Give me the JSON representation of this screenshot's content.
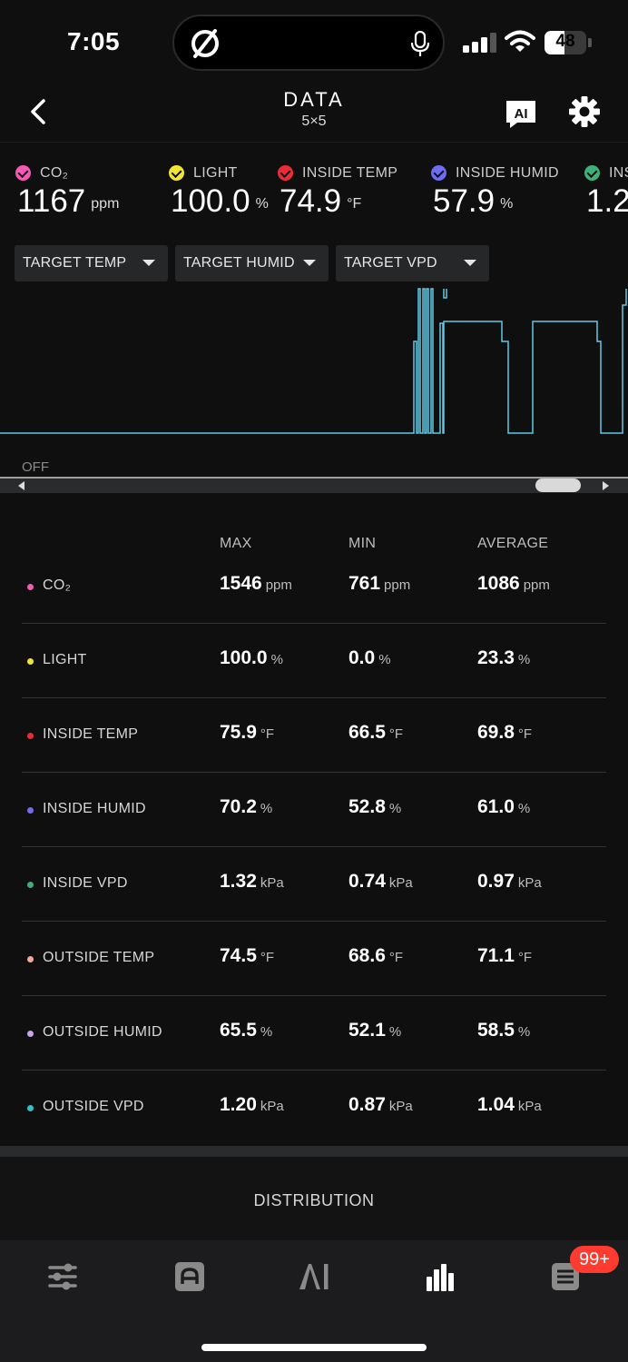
{
  "status_bar": {
    "time": "7:05",
    "battery_level": "48",
    "battery_fraction": 0.48,
    "icons": [
      "app-logo-icon",
      "microphone-icon",
      "cellular-signal-icon",
      "wifi-icon",
      "battery-icon"
    ]
  },
  "header": {
    "title": "DATA",
    "subtitle": "5×5",
    "icons": [
      "back-chevron-icon",
      "ai-chat-icon",
      "gear-icon"
    ]
  },
  "readings": [
    {
      "label": "CO₂",
      "value": "1167",
      "unit": "ppm",
      "color": "#f25bb1"
    },
    {
      "label": "LIGHT",
      "value": "100.0",
      "unit": "%",
      "color": "#f2e531"
    },
    {
      "label": "INSIDE TEMP",
      "value": "74.9",
      "unit": "°F",
      "color": "#ee2a37"
    },
    {
      "label": "INSIDE HUMID",
      "value": "57.9",
      "unit": "%",
      "color": "#6f6cf0"
    },
    {
      "label": "INS",
      "value": "1.2",
      "unit": "",
      "color": "#3db07a"
    }
  ],
  "targets": [
    {
      "label": "TARGET TEMP"
    },
    {
      "label": "TARGET HUMID"
    },
    {
      "label": "TARGET VPD"
    }
  ],
  "chart": {
    "off_label": "OFF",
    "line_color": "#5ec8e6"
  },
  "stats": {
    "columns": [
      "MAX",
      "MIN",
      "AVERAGE"
    ],
    "rows": [
      {
        "label": "CO₂",
        "color": "#f25bb1",
        "max": "1546",
        "min": "761",
        "avg": "1086",
        "unit": "ppm"
      },
      {
        "label": "LIGHT",
        "color": "#f2e531",
        "max": "100.0",
        "min": "0.0",
        "avg": "23.3",
        "unit": "%"
      },
      {
        "label": "INSIDE TEMP",
        "color": "#ee2a37",
        "max": "75.9",
        "min": "66.5",
        "avg": "69.8",
        "unit": "°F"
      },
      {
        "label": "INSIDE HUMID",
        "color": "#6f6cf0",
        "max": "70.2",
        "min": "52.8",
        "avg": "61.0",
        "unit": "%"
      },
      {
        "label": "INSIDE VPD",
        "color": "#3db07a",
        "max": "1.32",
        "min": "0.74",
        "avg": "0.97",
        "unit": "kPa"
      },
      {
        "label": "OUTSIDE TEMP",
        "color": "#f3a99a",
        "max": "74.5",
        "min": "68.6",
        "avg": "71.1",
        "unit": "°F"
      },
      {
        "label": "OUTSIDE HUMID",
        "color": "#c9a4ef",
        "max": "65.5",
        "min": "52.1",
        "avg": "58.5",
        "unit": "%"
      },
      {
        "label": "OUTSIDE VPD",
        "color": "#2fc1c8",
        "max": "1.20",
        "min": "0.87",
        "avg": "1.04",
        "unit": "kPa"
      }
    ]
  },
  "distribution_label": "DISTRIBUTION",
  "bottom_nav": {
    "items": [
      "sliders-icon",
      "controller-icon",
      "ai-icon",
      "bar-chart-icon",
      "notes-icon"
    ],
    "badge": "99+"
  }
}
